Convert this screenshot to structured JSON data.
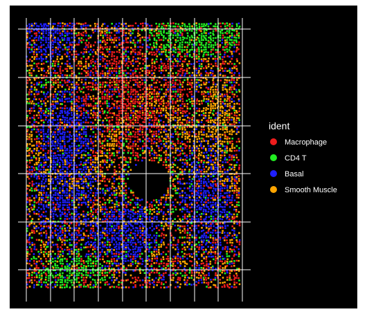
{
  "chart_data": {
    "type": "scatter",
    "title": "",
    "xlabel": "",
    "ylabel": "",
    "background": "#000000",
    "grid": true,
    "grid_color": "#ffffff",
    "x_breaks": 9,
    "y_breaks": 6,
    "legend": {
      "title": "ident",
      "position": "right",
      "title_color": "#ffffff",
      "text_color": "#ffffff",
      "entries": [
        {
          "name": "Macrophage",
          "color": "#ee1c1c"
        },
        {
          "name": "CD4 T",
          "color": "#22ee22"
        },
        {
          "name": "Basal",
          "color": "#1f1fff"
        },
        {
          "name": "Smooth Muscle",
          "color": "#ffa500"
        }
      ]
    },
    "series": [
      {
        "name": "Macrophage",
        "color": "#ee1c1c"
      },
      {
        "name": "CD4 T",
        "color": "#22ee22"
      },
      {
        "name": "Basal",
        "color": "#1f1fff"
      },
      {
        "name": "Smooth Muscle",
        "color": "#ffa500"
      }
    ]
  }
}
